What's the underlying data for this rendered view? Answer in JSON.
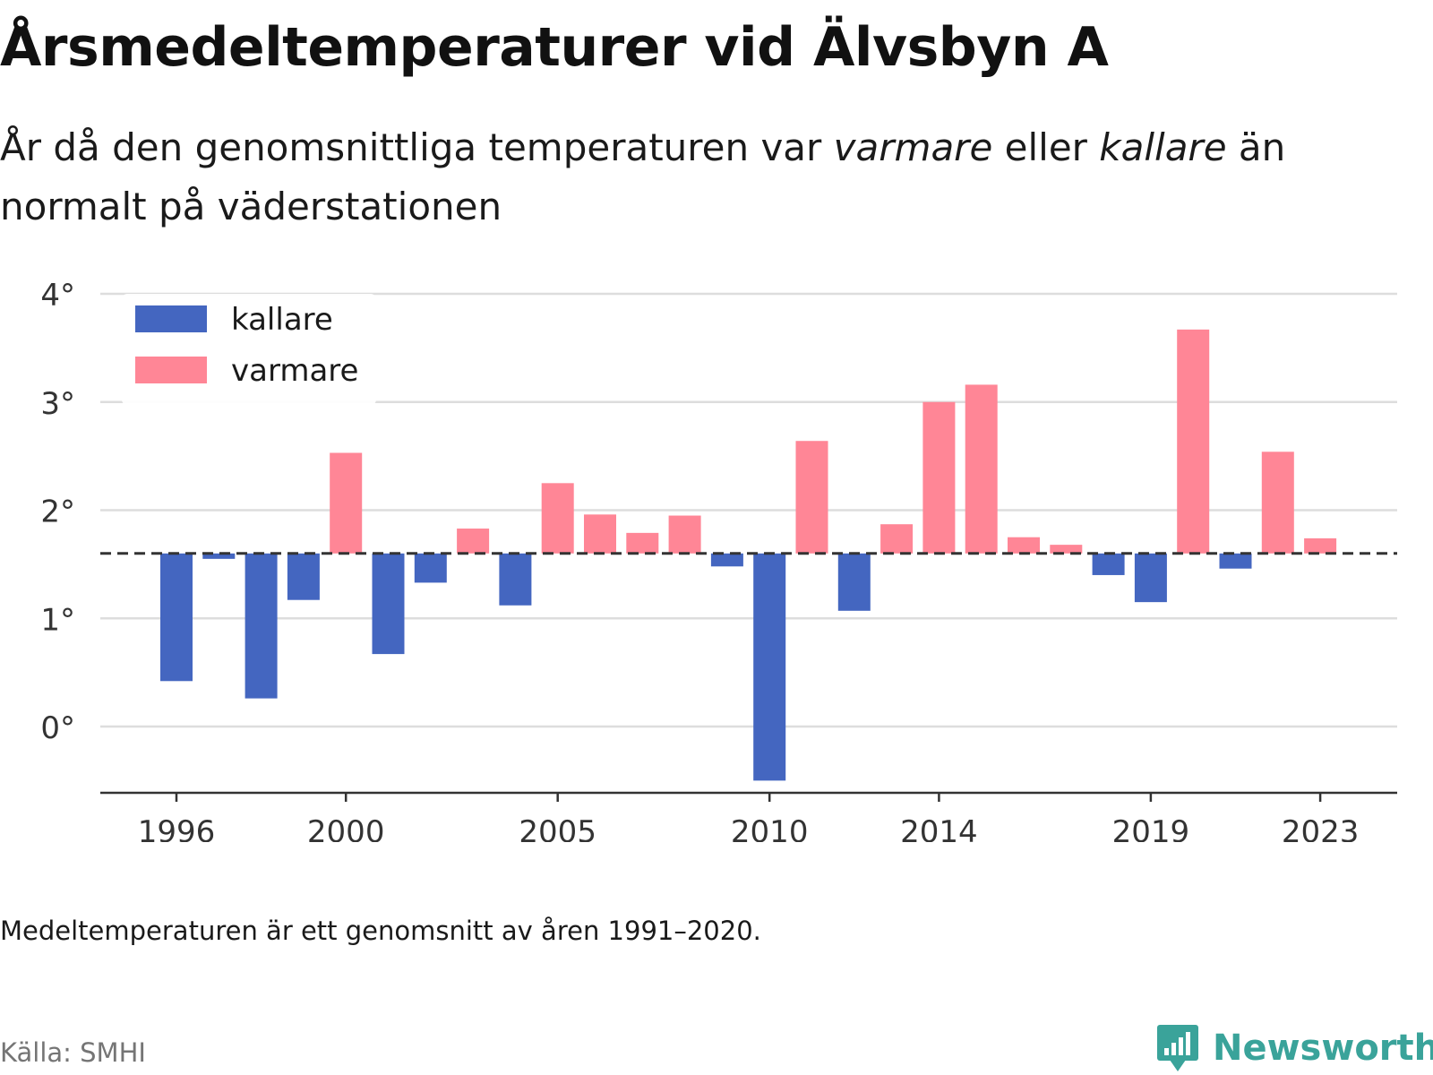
{
  "title": "Årsmedeltemperaturer vid Älvsbyn A",
  "subtitle": {
    "part1": "År då den genomsnittliga temperaturen var ",
    "warm_word": "varmare",
    "part2": " eller ",
    "cold_word": "kallare",
    "part3": " än normalt på väderstationen"
  },
  "note": "Medeltemperaturen är ett genomsnitt av åren 1991–2020.",
  "source": "Källa: SMHI",
  "brand": {
    "name": "Newsworthy",
    "icon": "newsworthy-logo-icon"
  },
  "colors": {
    "kallare": "#4466c0",
    "varmare": "#ff8696",
    "grid": "#dddddd",
    "baseline": "#333333",
    "brand": "#3aa39a"
  },
  "chart_data": {
    "type": "bar",
    "baseline": 1.6,
    "ylim": [
      -0.5,
      4.0
    ],
    "y_ticks": [
      0,
      1,
      2,
      3,
      4
    ],
    "y_tick_labels": [
      "0°",
      "1°",
      "2°",
      "3°",
      "4°"
    ],
    "xlim": [
      1995,
      2024
    ],
    "x_ticks": [
      1996,
      2000,
      2005,
      2010,
      2014,
      2019,
      2023
    ],
    "x_tick_labels": [
      "1996",
      "2000",
      "2005",
      "2010",
      "2014",
      "2019",
      "2023"
    ],
    "grid": true,
    "legend": {
      "position": "top-left",
      "items": [
        "kallare",
        "varmare"
      ]
    },
    "years": [
      1996,
      1997,
      1998,
      1999,
      2000,
      2001,
      2002,
      2003,
      2004,
      2005,
      2006,
      2007,
      2008,
      2009,
      2010,
      2011,
      2012,
      2013,
      2014,
      2015,
      2016,
      2017,
      2018,
      2019,
      2020,
      2021,
      2022,
      2023
    ],
    "values": [
      0.42,
      1.55,
      0.26,
      1.17,
      2.53,
      0.67,
      1.33,
      1.83,
      1.12,
      2.25,
      1.96,
      1.79,
      1.95,
      1.48,
      -0.5,
      2.64,
      1.07,
      1.87,
      3.0,
      3.16,
      1.75,
      1.68,
      1.4,
      1.15,
      3.67,
      1.46,
      2.54,
      1.74
    ],
    "series": [
      {
        "name": "kallare",
        "years": [
          1996,
          1997,
          1998,
          1999,
          2001,
          2002,
          2004,
          2009,
          2010,
          2012,
          2018,
          2019,
          2021
        ],
        "values": [
          0.42,
          1.55,
          0.26,
          1.17,
          0.67,
          1.33,
          1.12,
          1.48,
          -0.5,
          1.07,
          1.4,
          1.15,
          1.46
        ]
      },
      {
        "name": "varmare",
        "years": [
          2000,
          2003,
          2005,
          2006,
          2007,
          2008,
          2011,
          2013,
          2014,
          2015,
          2016,
          2017,
          2020,
          2022,
          2023
        ],
        "values": [
          2.53,
          1.83,
          2.25,
          1.96,
          1.79,
          1.95,
          2.64,
          1.87,
          3.0,
          3.16,
          1.75,
          1.68,
          3.67,
          2.54,
          1.74
        ]
      }
    ]
  }
}
